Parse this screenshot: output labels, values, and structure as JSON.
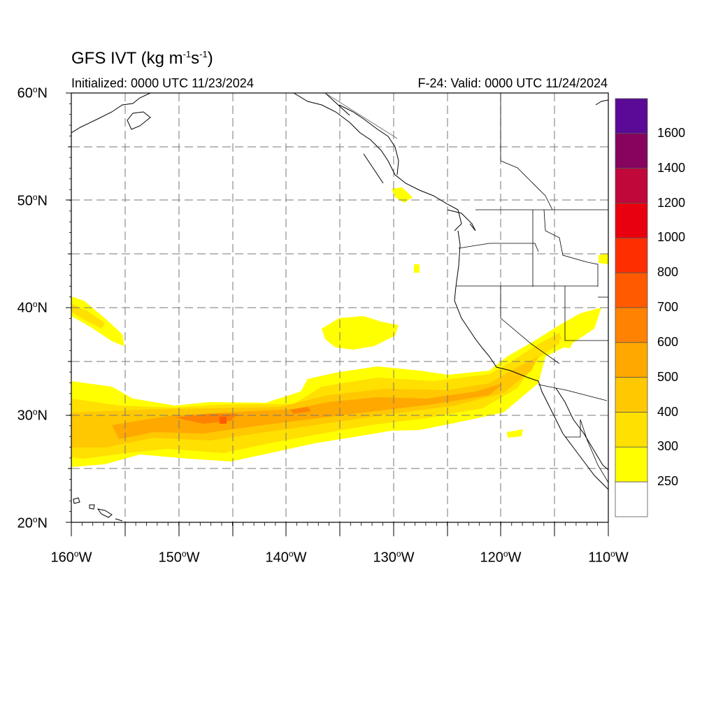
{
  "header": {
    "title_main": "GFS IVT (kg m",
    "title_sup1": "-1",
    "title_mid": "s",
    "title_sup2": "-1",
    "title_end": ")",
    "initialized": "Initialized: 0000 UTC 11/23/2024",
    "valid": "F-24: Valid: 0000 UTC 11/24/2024"
  },
  "map": {
    "extent": {
      "lon_min": -160,
      "lon_max": -110,
      "lat_min": 20,
      "lat_max": 60
    },
    "gridlines": "dashed",
    "lat_labels": [
      {
        "value": "60",
        "hemi": "N"
      },
      {
        "value": "50",
        "hemi": "N"
      },
      {
        "value": "40",
        "hemi": "N"
      },
      {
        "value": "30",
        "hemi": "N"
      },
      {
        "value": "20",
        "hemi": "N"
      }
    ],
    "lon_labels": [
      {
        "value": "160",
        "hemi": "W"
      },
      {
        "value": "150",
        "hemi": "W"
      },
      {
        "value": "140",
        "hemi": "W"
      },
      {
        "value": "130",
        "hemi": "W"
      },
      {
        "value": "120",
        "hemi": "W"
      },
      {
        "value": "110",
        "hemi": "W"
      }
    ]
  },
  "colorbar": {
    "labels": [
      "1600",
      "1400",
      "1200",
      "1000",
      "800",
      "700",
      "600",
      "500",
      "400",
      "300",
      "250"
    ],
    "colors": [
      "#5a0a96",
      "#86045e",
      "#c0083a",
      "#e8000e",
      "#ff2e00",
      "#ff5a00",
      "#ff8200",
      "#ffa800",
      "#ffc800",
      "#ffe000",
      "#ffff00",
      "#ffffff"
    ]
  }
}
